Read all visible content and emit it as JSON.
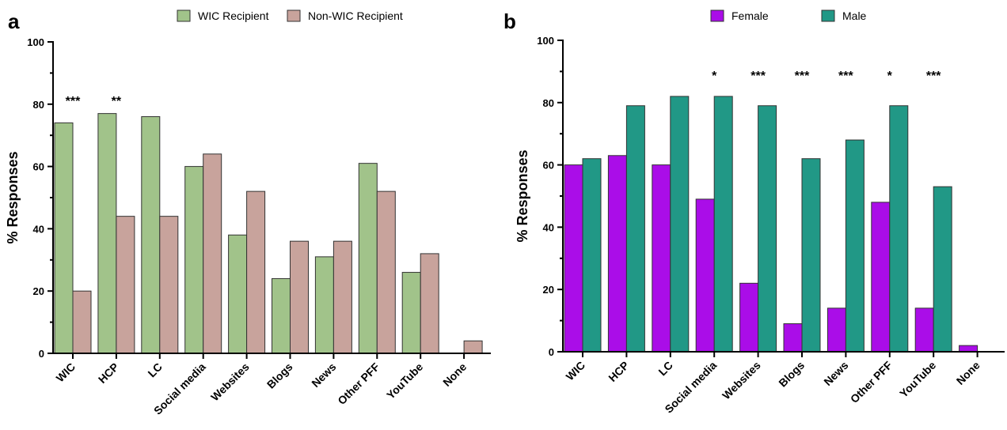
{
  "chart_data": [
    {
      "type": "bar",
      "panel": "a",
      "categories": [
        "WIC",
        "HCP",
        "LC",
        "Social media",
        "Websites",
        "Blogs",
        "News",
        "Other PFF",
        "YouTube",
        "None"
      ],
      "series": [
        {
          "name": "WIC Recipient",
          "color": "#a1c38a",
          "values": [
            74,
            77,
            76,
            60,
            38,
            24,
            31,
            61,
            26,
            0
          ]
        },
        {
          "name": "Non-WIC Recipient",
          "color": "#c8a39c",
          "values": [
            20,
            44,
            44,
            64,
            52,
            36,
            36,
            52,
            32,
            4
          ]
        }
      ],
      "significance": [
        "***",
        "**",
        "",
        "",
        "",
        "",
        "",
        "",
        "",
        ""
      ],
      "xlabel": "",
      "ylabel": "% Responses",
      "ylim": [
        0,
        100
      ],
      "yticks": [
        0,
        20,
        40,
        60,
        80,
        100
      ],
      "legend": "top-center",
      "grid": false
    },
    {
      "type": "bar",
      "panel": "b",
      "categories": [
        "WIC",
        "HCP",
        "LC",
        "Social media",
        "Websites",
        "Blogs",
        "News",
        "Other PFF",
        "YouTube",
        "None"
      ],
      "series": [
        {
          "name": "Female",
          "color": "#aa0de8",
          "values": [
            60,
            63,
            60,
            49,
            22,
            9,
            14,
            48,
            14,
            2
          ]
        },
        {
          "name": "Male",
          "color": "#219886",
          "values": [
            62,
            79,
            82,
            82,
            79,
            62,
            68,
            79,
            53,
            0
          ]
        }
      ],
      "significance": [
        "",
        "",
        "",
        "*",
        "***",
        "***",
        "***",
        "*",
        "***",
        ""
      ],
      "xlabel": "",
      "ylabel": "% Responses",
      "ylim": [
        0,
        100
      ],
      "yticks": [
        0,
        20,
        40,
        60,
        80,
        100
      ],
      "legend": "top-center",
      "grid": false
    }
  ]
}
